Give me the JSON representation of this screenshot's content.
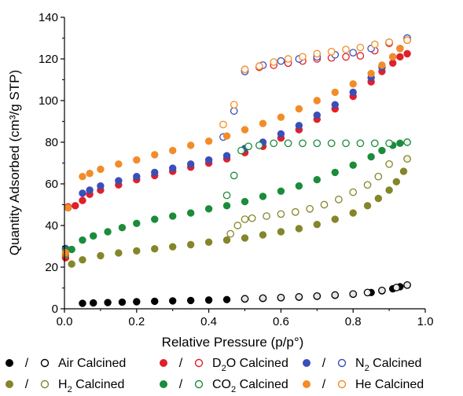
{
  "chart_data": {
    "type": "scatter",
    "xlabel": "Relative Pressure (p/p°)",
    "ylabel": "Quantity Adsorbed (cm³/g STP)",
    "xlim": [
      0.0,
      1.0
    ],
    "ylim": [
      0,
      140
    ],
    "xticks": [
      "0.0",
      "0.2",
      "0.4",
      "0.6",
      "0.8",
      "1.0"
    ],
    "yticks": [
      "0",
      "20",
      "40",
      "60",
      "80",
      "100",
      "120",
      "140"
    ],
    "grid": false,
    "legend_position": "bottom",
    "series": [
      {
        "name": "Air Calcined",
        "label": "Air Calcined",
        "color": "#000000",
        "adsorption": [
          [
            0.05,
            2.6
          ],
          [
            0.08,
            2.8
          ],
          [
            0.12,
            3.0
          ],
          [
            0.16,
            3.2
          ],
          [
            0.2,
            3.4
          ],
          [
            0.25,
            3.6
          ],
          [
            0.3,
            3.8
          ],
          [
            0.35,
            4.0
          ],
          [
            0.4,
            4.2
          ],
          [
            0.45,
            4.4
          ],
          [
            0.5,
            4.7
          ],
          [
            0.55,
            5.0
          ],
          [
            0.6,
            5.3
          ],
          [
            0.65,
            5.6
          ],
          [
            0.7,
            6.0
          ],
          [
            0.75,
            6.5
          ],
          [
            0.8,
            7.0
          ],
          [
            0.85,
            7.8
          ],
          [
            0.88,
            8.6
          ],
          [
            0.91,
            9.6
          ],
          [
            0.93,
            10.6
          ],
          [
            0.95,
            11.4
          ]
        ],
        "desorption": [
          [
            0.95,
            11.4
          ],
          [
            0.92,
            10.2
          ],
          [
            0.88,
            8.8
          ],
          [
            0.84,
            7.8
          ],
          [
            0.8,
            7.1
          ],
          [
            0.75,
            6.6
          ],
          [
            0.7,
            6.1
          ],
          [
            0.65,
            5.7
          ],
          [
            0.6,
            5.4
          ],
          [
            0.55,
            5.1
          ],
          [
            0.5,
            4.8
          ]
        ]
      },
      {
        "name": "D2O Calcined",
        "label_main": "D",
        "label_sub": "2",
        "label_rest": "O Calcined",
        "color": "#e0202a",
        "adsorption": [
          [
            0.003,
            24.5
          ],
          [
            0.01,
            49
          ],
          [
            0.03,
            49.5
          ],
          [
            0.05,
            52
          ],
          [
            0.07,
            55
          ],
          [
            0.1,
            57
          ],
          [
            0.15,
            59.5
          ],
          [
            0.2,
            62
          ],
          [
            0.25,
            64
          ],
          [
            0.3,
            66
          ],
          [
            0.35,
            68
          ],
          [
            0.4,
            70
          ],
          [
            0.45,
            72
          ],
          [
            0.5,
            75
          ],
          [
            0.55,
            78
          ],
          [
            0.6,
            82
          ],
          [
            0.65,
            86
          ],
          [
            0.7,
            91
          ],
          [
            0.75,
            96
          ],
          [
            0.8,
            102
          ],
          [
            0.85,
            109
          ],
          [
            0.88,
            114
          ],
          [
            0.91,
            118
          ],
          [
            0.93,
            121
          ],
          [
            0.95,
            122.5
          ]
        ],
        "desorption": [
          [
            0.95,
            129
          ],
          [
            0.9,
            127.5
          ],
          [
            0.86,
            124
          ],
          [
            0.82,
            121.5
          ],
          [
            0.78,
            121
          ],
          [
            0.74,
            120.5
          ],
          [
            0.7,
            120
          ],
          [
            0.66,
            119
          ],
          [
            0.62,
            118
          ],
          [
            0.58,
            117
          ],
          [
            0.54,
            116
          ],
          [
            0.5,
            114.5
          ]
        ]
      },
      {
        "name": "N2 Calcined",
        "label_main": "N",
        "label_sub": "2",
        "label_rest": " Calcined",
        "color": "#3a4fb8",
        "adsorption": [
          [
            0.003,
            29
          ],
          [
            0.01,
            48.5
          ],
          [
            0.05,
            55.5
          ],
          [
            0.07,
            57
          ],
          [
            0.1,
            59
          ],
          [
            0.15,
            61.5
          ],
          [
            0.2,
            63.5
          ],
          [
            0.25,
            65.5
          ],
          [
            0.3,
            67.5
          ],
          [
            0.35,
            69.5
          ],
          [
            0.4,
            71.5
          ],
          [
            0.45,
            73.5
          ],
          [
            0.5,
            77
          ],
          [
            0.55,
            80
          ],
          [
            0.6,
            84
          ],
          [
            0.65,
            88
          ],
          [
            0.7,
            93
          ],
          [
            0.75,
            98
          ],
          [
            0.8,
            104
          ],
          [
            0.85,
            111
          ],
          [
            0.88,
            116
          ],
          [
            0.91,
            121
          ],
          [
            0.93,
            125
          ],
          [
            0.95,
            130
          ]
        ],
        "desorption": [
          [
            0.95,
            130
          ],
          [
            0.9,
            128
          ],
          [
            0.85,
            125
          ],
          [
            0.8,
            123
          ],
          [
            0.75,
            122
          ],
          [
            0.7,
            121
          ],
          [
            0.65,
            120
          ],
          [
            0.6,
            119
          ],
          [
            0.55,
            117
          ],
          [
            0.5,
            114
          ],
          [
            0.47,
            95
          ],
          [
            0.44,
            82.5
          ]
        ]
      },
      {
        "name": "H2 Calcined",
        "label_main": "H",
        "label_sub": "2",
        "label_rest": " Calcined",
        "color": "#85852a",
        "adsorption": [
          [
            0.003,
            26
          ],
          [
            0.02,
            21.5
          ],
          [
            0.05,
            23.5
          ],
          [
            0.1,
            25.5
          ],
          [
            0.15,
            26.8
          ],
          [
            0.2,
            27.8
          ],
          [
            0.25,
            28.8
          ],
          [
            0.3,
            29.8
          ],
          [
            0.35,
            30.8
          ],
          [
            0.4,
            32
          ],
          [
            0.45,
            33
          ],
          [
            0.5,
            34
          ],
          [
            0.55,
            35.5
          ],
          [
            0.6,
            37
          ],
          [
            0.65,
            38.5
          ],
          [
            0.7,
            40.5
          ],
          [
            0.75,
            43
          ],
          [
            0.8,
            46
          ],
          [
            0.84,
            49.5
          ],
          [
            0.87,
            53
          ],
          [
            0.9,
            57
          ],
          [
            0.92,
            61
          ],
          [
            0.94,
            66
          ],
          [
            0.95,
            72
          ]
        ],
        "desorption": [
          [
            0.95,
            72
          ],
          [
            0.9,
            69.5
          ],
          [
            0.87,
            63.5
          ],
          [
            0.84,
            59.5
          ],
          [
            0.8,
            56
          ],
          [
            0.76,
            52.5
          ],
          [
            0.72,
            50
          ],
          [
            0.68,
            48
          ],
          [
            0.64,
            46.5
          ],
          [
            0.6,
            45.5
          ],
          [
            0.56,
            44.5
          ],
          [
            0.52,
            43.5
          ],
          [
            0.5,
            43
          ],
          [
            0.48,
            40
          ],
          [
            0.46,
            36
          ]
        ]
      },
      {
        "name": "CO2 Calcined",
        "label_main": "CO",
        "label_sub": "2",
        "label_rest": " Calcined",
        "color": "#1a8c3a",
        "adsorption": [
          [
            0.003,
            28
          ],
          [
            0.02,
            28.5
          ],
          [
            0.05,
            33
          ],
          [
            0.08,
            35
          ],
          [
            0.12,
            37
          ],
          [
            0.16,
            39
          ],
          [
            0.2,
            41
          ],
          [
            0.25,
            43
          ],
          [
            0.3,
            44.5
          ],
          [
            0.35,
            46
          ],
          [
            0.4,
            48
          ],
          [
            0.45,
            49.5
          ],
          [
            0.5,
            51.5
          ],
          [
            0.55,
            54
          ],
          [
            0.6,
            56.5
          ],
          [
            0.65,
            59
          ],
          [
            0.7,
            62
          ],
          [
            0.75,
            65.5
          ],
          [
            0.8,
            69
          ],
          [
            0.85,
            73
          ],
          [
            0.88,
            76
          ],
          [
            0.91,
            78.5
          ],
          [
            0.93,
            79.5
          ],
          [
            0.95,
            80
          ]
        ],
        "desorption": [
          [
            0.95,
            80
          ],
          [
            0.9,
            79.5
          ],
          [
            0.86,
            79.5
          ],
          [
            0.82,
            79.5
          ],
          [
            0.78,
            79.5
          ],
          [
            0.74,
            79.5
          ],
          [
            0.7,
            79.5
          ],
          [
            0.66,
            79.5
          ],
          [
            0.62,
            79.5
          ],
          [
            0.58,
            79.5
          ],
          [
            0.54,
            78.5
          ],
          [
            0.51,
            78
          ],
          [
            0.49,
            76
          ],
          [
            0.47,
            64
          ],
          [
            0.45,
            54.5
          ]
        ]
      },
      {
        "name": "He Calcined",
        "label": "He Calcined",
        "color": "#f28c28",
        "adsorption": [
          [
            0.003,
            27
          ],
          [
            0.01,
            48.5
          ],
          [
            0.05,
            63.5
          ],
          [
            0.07,
            65
          ],
          [
            0.1,
            67
          ],
          [
            0.15,
            69.5
          ],
          [
            0.2,
            71.5
          ],
          [
            0.25,
            74
          ],
          [
            0.3,
            76
          ],
          [
            0.35,
            78.5
          ],
          [
            0.4,
            80.5
          ],
          [
            0.45,
            83
          ],
          [
            0.5,
            86
          ],
          [
            0.55,
            89
          ],
          [
            0.6,
            92
          ],
          [
            0.65,
            96
          ],
          [
            0.7,
            100
          ],
          [
            0.75,
            104
          ],
          [
            0.8,
            108
          ],
          [
            0.85,
            113
          ],
          [
            0.88,
            117
          ],
          [
            0.91,
            121
          ],
          [
            0.93,
            125
          ],
          [
            0.95,
            129
          ]
        ],
        "desorption": [
          [
            0.95,
            129
          ],
          [
            0.9,
            128
          ],
          [
            0.86,
            127
          ],
          [
            0.82,
            125.5
          ],
          [
            0.78,
            124.5
          ],
          [
            0.74,
            123.5
          ],
          [
            0.7,
            122.5
          ],
          [
            0.66,
            121
          ],
          [
            0.62,
            120
          ],
          [
            0.58,
            118.5
          ],
          [
            0.54,
            116.5
          ],
          [
            0.5,
            115
          ],
          [
            0.47,
            98
          ],
          [
            0.44,
            88.5
          ]
        ]
      }
    ],
    "legend_separator": "/"
  }
}
